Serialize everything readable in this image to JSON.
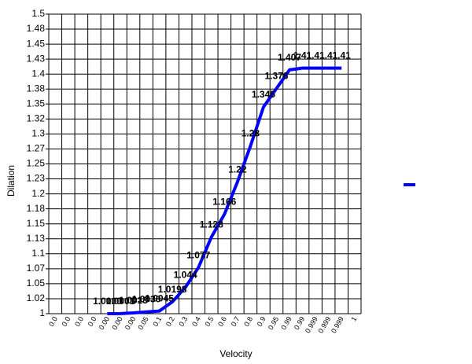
{
  "chart_data": {
    "type": "line",
    "x_label": "Velocity",
    "y_label": "Dilation",
    "categories": [
      "0.0",
      "0.0",
      "0.0",
      "0.0",
      "0.00",
      "0.00",
      "0.00",
      "0.05",
      "0.1",
      "0.2",
      "0.3",
      "0.4",
      "0.5",
      "0.6",
      "0.7",
      "0.8",
      "0.9",
      "0.95",
      "0.99",
      "0.99",
      "0.999",
      "0.999",
      "0.999",
      "1"
    ],
    "series": [
      {
        "color": "#0000ff",
        "values": [
          null,
          null,
          null,
          null,
          1.00001,
          1.0001,
          1.0013,
          1.003,
          1.0045,
          1.0198,
          1.044,
          1.077,
          1.128,
          1.166,
          1.22,
          1.28,
          1.345,
          1.376,
          1.407,
          1.41,
          1.41,
          1.41,
          1.41,
          null
        ],
        "value_labels": [
          null,
          null,
          null,
          null,
          "1.0000",
          "1.0001",
          "1.0013",
          "1.0030",
          "1.0045",
          "1.0198",
          "1.044",
          "1.077",
          "1.128",
          "1.166",
          "1.22",
          "1.28",
          "1.345",
          "1.376",
          "1.407",
          "1.41",
          "1.41",
          "1.41",
          "1.41",
          null
        ]
      }
    ],
    "ylim": [
      1,
      1.5
    ],
    "yticks": [
      1,
      {
        "value": 1.025,
        "label": "1.02"
      },
      {
        "value": 1.05,
        "label": "1.05"
      },
      {
        "value": 1.075,
        "label": "1.07"
      },
      1.1,
      {
        "value": 1.125,
        "label": "1.13"
      },
      1.15,
      {
        "value": 1.175,
        "label": "1.18"
      },
      1.2,
      {
        "value": 1.225,
        "label": "1.23"
      },
      1.25,
      {
        "value": 1.275,
        "label": "1.27"
      },
      1.3,
      {
        "value": 1.325,
        "label": "1.32"
      },
      1.35,
      {
        "value": 1.375,
        "label": "1.38"
      },
      1.4,
      {
        "value": 1.425,
        "label": "1.43"
      },
      1.45,
      {
        "value": 1.475,
        "label": "1.48"
      },
      1.5
    ],
    "grid": true
  }
}
